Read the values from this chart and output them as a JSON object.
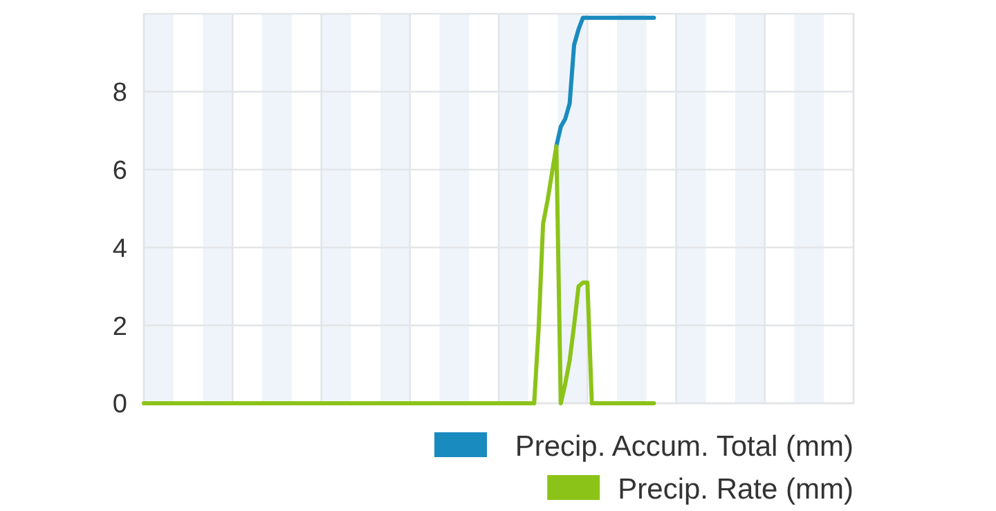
{
  "chart_data": {
    "type": "line",
    "categories": [
      null,
      null,
      null,
      null,
      null,
      null,
      null,
      null,
      null,
      null,
      null,
      null,
      null,
      null,
      null,
      null,
      null,
      null,
      null,
      null,
      null,
      null,
      null,
      null,
      null,
      null,
      null,
      null,
      null,
      null,
      null,
      null,
      null,
      null,
      null,
      null,
      null,
      null,
      null,
      null,
      null,
      null,
      null,
      null,
      null,
      null,
      null,
      null,
      null,
      null,
      null,
      null,
      null,
      null,
      null,
      null,
      null,
      null,
      null,
      null,
      null,
      null,
      null,
      null,
      null,
      null,
      null,
      null,
      null,
      null,
      null,
      null,
      null,
      null,
      null,
      null,
      null,
      null,
      null,
      null,
      null,
      null,
      null,
      null,
      null,
      null,
      null,
      null,
      null,
      null,
      null,
      null,
      null,
      null,
      null,
      null,
      null,
      null,
      null,
      null,
      null,
      null,
      null,
      null,
      null,
      null,
      null,
      null,
      null,
      null,
      null,
      null,
      null,
      null,
      null,
      null,
      null,
      null,
      null,
      null,
      null,
      null,
      null,
      null,
      null,
      null,
      null,
      null,
      null,
      null,
      null,
      null,
      null,
      null,
      null,
      null,
      null,
      null,
      null,
      null,
      null,
      null,
      null,
      null,
      null,
      null,
      null,
      null,
      null,
      null,
      null,
      null,
      null,
      null,
      null,
      null,
      null,
      null,
      null,
      null,
      null
    ],
    "ylim": [
      0,
      10
    ],
    "yticks": [
      0,
      2,
      4,
      6,
      8
    ],
    "tick_labels": "y",
    "grid": true,
    "legend": "bottom right",
    "marker": "none",
    "line_style": "solid",
    "series": [
      {
        "name": "Precip. Accum. Total (mm)",
        "color": "#1a8bbf",
        "values": [
          null,
          null,
          null,
          null,
          null,
          null,
          null,
          null,
          null,
          null,
          null,
          null,
          null,
          null,
          null,
          null,
          null,
          null,
          null,
          null,
          null,
          null,
          null,
          null,
          null,
          null,
          null,
          null,
          null,
          null,
          null,
          null,
          null,
          null,
          null,
          null,
          null,
          null,
          null,
          null,
          null,
          null,
          null,
          null,
          null,
          null,
          null,
          null,
          null,
          null,
          null,
          null,
          null,
          null,
          null,
          null,
          null,
          null,
          null,
          null,
          null,
          null,
          null,
          null,
          null,
          null,
          null,
          null,
          null,
          null,
          null,
          null,
          null,
          null,
          null,
          null,
          null,
          null,
          null,
          null,
          null,
          null,
          null,
          null,
          null,
          null,
          null,
          null,
          null,
          null,
          null,
          null,
          null,
          6.6,
          7.1,
          7.3,
          7.7,
          9.2,
          9.6,
          9.9,
          9.9,
          9.9,
          9.9,
          9.9,
          9.9,
          9.9,
          9.9,
          9.9,
          9.9,
          9.9,
          9.9,
          9.9,
          9.9,
          9.9,
          9.9,
          9.9,
          null,
          null,
          null,
          null,
          null,
          null,
          null,
          null,
          null,
          null,
          null,
          null,
          null,
          null,
          null,
          null,
          null,
          null,
          null,
          null,
          null,
          null,
          null,
          null,
          null,
          null,
          null,
          null,
          null,
          null,
          null,
          null,
          null,
          null,
          null,
          null,
          null,
          null,
          null,
          null,
          null,
          null,
          null,
          null,
          null
        ]
      },
      {
        "name": "Precip. Rate (mm)",
        "color": "#8cc319",
        "values": [
          0,
          0,
          0,
          0,
          0,
          0,
          0,
          0,
          0,
          0,
          0,
          0,
          0,
          0,
          0,
          0,
          0,
          0,
          0,
          0,
          0,
          0,
          0,
          0,
          0,
          0,
          0,
          0,
          0,
          0,
          0,
          0,
          0,
          0,
          0,
          0,
          0,
          0,
          0,
          0,
          0,
          0,
          0,
          0,
          0,
          0,
          0,
          0,
          0,
          0,
          0,
          0,
          0,
          0,
          0,
          0,
          0,
          0,
          0,
          0,
          0,
          0,
          0,
          0,
          0,
          0,
          0,
          0,
          0,
          0,
          0,
          0,
          0,
          0,
          0,
          0,
          0,
          0,
          0,
          0,
          0,
          0,
          0,
          0,
          0,
          0,
          0,
          0,
          0,
          1.9,
          4.6,
          5.2,
          5.9,
          6.6,
          0,
          0.5,
          1.1,
          2.0,
          3.0,
          3.1,
          3.1,
          0,
          0,
          0,
          0,
          0,
          0,
          0,
          0,
          0,
          0,
          0,
          0,
          0,
          0,
          0,
          null,
          null,
          null,
          null,
          null,
          null,
          null,
          null,
          null,
          null,
          null,
          null,
          null,
          null,
          null,
          null,
          null,
          null,
          null,
          null,
          null,
          null,
          null,
          null,
          null,
          null,
          null,
          null,
          null,
          null,
          null,
          null,
          null,
          null,
          null,
          null,
          null,
          null,
          null,
          null,
          null,
          null,
          null,
          null,
          null
        ]
      }
    ]
  }
}
